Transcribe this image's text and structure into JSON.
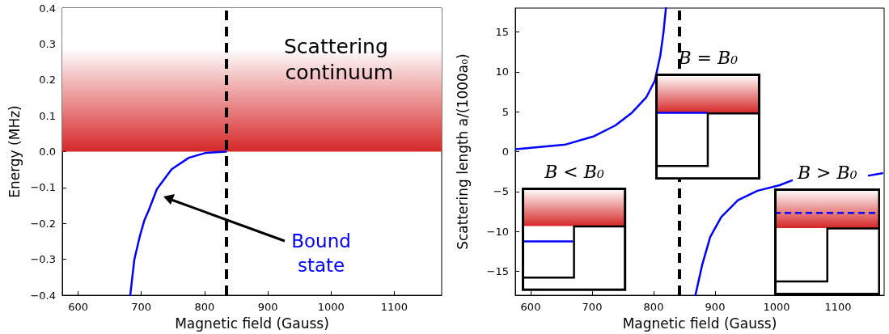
{
  "chart_data": [
    {
      "type": "line",
      "xlabel": "Magnetic field (Gauss)",
      "ylabel": "Energy (MHz)",
      "xlim": [
        575,
        1175
      ],
      "xticks": [
        600,
        700,
        800,
        900,
        1000,
        1100
      ],
      "ylim": [
        -0.4,
        0.4
      ],
      "yticks": [
        {
          "value": -0.4,
          "label": "−0.4"
        },
        {
          "value": -0.3,
          "label": "−0.3"
        },
        {
          "value": -0.2,
          "label": "−0.2"
        },
        {
          "value": -0.1,
          "label": "−0.1"
        },
        {
          "value": 0,
          "label": "0.0"
        },
        0.1,
        0.2,
        0.3,
        0.4
      ],
      "series": [
        {
          "color": "#0000ff",
          "x": [
            682.5,
            689,
            698,
            705,
            712,
            724.7,
            748,
            775,
            802.6,
            834
          ],
          "values": [
            -0.4,
            -0.3,
            -0.233,
            -0.19,
            -0.162,
            -0.104,
            -0.049,
            -0.017,
            -0.003,
            0
          ]
        }
      ],
      "ref_lines": [
        {
          "axis": "x",
          "value": 835,
          "color": "#000000",
          "line_style": "dashed"
        }
      ],
      "bands": [
        {
          "axis": "y",
          "from": 0,
          "to": 0.4,
          "label": "Scattering continuum",
          "color": "#d62728"
        }
      ],
      "annotations": [
        "Bound state"
      ],
      "marker": "none",
      "line_style": "solid"
    },
    {
      "type": "line",
      "xlabel": "Magnetic field (Gauss)",
      "ylabel": "Scattering length a/(1000a₀)",
      "xlim": [
        575,
        1175
      ],
      "xticks": [
        600,
        700,
        800,
        900,
        1000,
        1100
      ],
      "ylim": [
        -18,
        18
      ],
      "yticks": [
        {
          "value": -15,
          "label": "−15"
        },
        {
          "value": -10,
          "label": "−10"
        },
        {
          "value": -5,
          "label": "−5"
        },
        0,
        5,
        10,
        15
      ],
      "series": [
        {
          "color": "#0000ff",
          "x": [
            576,
            657,
            702,
            738,
            765,
            788,
            802,
            811,
            816,
            820,
            840,
            868,
            879,
            892,
            910,
            937,
            969,
            1005,
            1025,
            1090,
            1150,
            1172
          ],
          "values": [
            0.3,
            0.9,
            1.9,
            3.3,
            4.9,
            6.8,
            8.9,
            12.1,
            14.9,
            18,
            null,
            -18,
            -14.2,
            -10.7,
            -8.2,
            -6.1,
            -4.9,
            -4.2,
            -3.6,
            null,
            -3.0,
            -2.7
          ]
        }
      ],
      "ref_lines": [
        {
          "axis": "x",
          "value": 842,
          "color": "#000000",
          "line_style": "dashed"
        }
      ],
      "annotations": [
        "B < B₀",
        "B = B₀",
        "B > B₀"
      ],
      "marker": "none",
      "line_style": "solid"
    }
  ]
}
